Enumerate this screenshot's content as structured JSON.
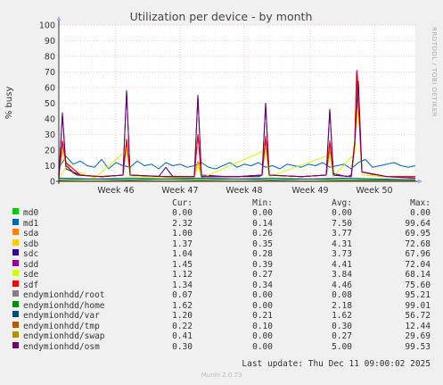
{
  "chart_data": {
    "type": "line",
    "title": "Utilization per device - by month",
    "ylabel": "% busy",
    "ylim": [
      0,
      100
    ],
    "yticks": [
      0,
      10,
      20,
      30,
      40,
      50,
      60,
      70,
      80,
      90,
      100
    ],
    "xrange": [
      0,
      100
    ],
    "xticks": [
      {
        "label": "Week 46",
        "x": 16
      },
      {
        "label": "Week 47",
        "x": 34
      },
      {
        "label": "Week 48",
        "x": 52
      },
      {
        "label": "Week 49",
        "x": 70.5
      },
      {
        "label": "Week 50",
        "x": 88.5
      }
    ],
    "grid": true,
    "watermark": "RRDTOOL / TOBI OETIKER",
    "series": [
      {
        "name": "md0",
        "color": "#00cc00",
        "cur": "0.00",
        "min": "0.00",
        "avg": "0.00",
        "max": "0.00",
        "x": [
          0,
          100
        ],
        "y": [
          0,
          0
        ]
      },
      {
        "name": "md1",
        "color": "#0066b3",
        "cur": "2.32",
        "min": "0.14",
        "avg": "7.50",
        "max": "99.64",
        "x": [
          0,
          1,
          2,
          4,
          6,
          8,
          10,
          12,
          14,
          16,
          18,
          20,
          22,
          24,
          26,
          28,
          30,
          32,
          34,
          36,
          38,
          40,
          42,
          44,
          46,
          48,
          50,
          52,
          54,
          56,
          58,
          60,
          62,
          64,
          66,
          68,
          70,
          72,
          74,
          76,
          78,
          80,
          82,
          84,
          86,
          88,
          90,
          92,
          94,
          96,
          98,
          100
        ],
        "y": [
          9,
          12,
          16,
          11,
          13,
          10,
          9,
          14,
          8,
          12,
          10,
          9,
          13,
          10,
          11,
          8,
          12,
          10,
          11,
          9,
          10,
          12,
          9,
          8,
          10,
          12,
          9,
          11,
          10,
          12,
          9,
          10,
          8,
          11,
          10,
          9,
          11,
          10,
          12,
          9,
          10,
          11,
          8,
          12,
          14,
          9,
          10,
          11,
          12,
          10,
          9,
          10
        ]
      },
      {
        "name": "sda",
        "color": "#ff8000",
        "cur": "1.00",
        "min": "0.26",
        "avg": "3.77",
        "max": "69.95",
        "x": [
          0,
          1,
          2,
          4,
          10,
          18,
          19,
          20,
          30,
          38,
          39,
          40,
          50,
          57,
          58,
          59,
          68,
          75,
          76,
          77,
          82,
          83,
          83.8,
          85,
          90,
          100
        ],
        "y": [
          3,
          24,
          12,
          5,
          3,
          4,
          27,
          4,
          3,
          3,
          13,
          3,
          3,
          4,
          26,
          4,
          3,
          4,
          21,
          4,
          3,
          24,
          68,
          6,
          3,
          3
        ]
      },
      {
        "name": "sdb",
        "color": "#ffcc00",
        "cur": "1.37",
        "min": "0.35",
        "avg": "4.31",
        "max": "72.68",
        "x": [
          0,
          1,
          2,
          5,
          12,
          18,
          19,
          20,
          30,
          38,
          39,
          40,
          50,
          57,
          58,
          59,
          68,
          75,
          76,
          77,
          82,
          83,
          84,
          85,
          92,
          100
        ],
        "y": [
          3,
          20,
          10,
          4,
          3,
          4,
          22,
          4,
          3,
          3,
          11,
          3,
          3,
          4,
          22,
          4,
          3,
          4,
          18,
          4,
          3,
          20,
          57,
          6,
          3,
          3
        ]
      },
      {
        "name": "sdc",
        "color": "#330099",
        "cur": "1.04",
        "min": "0.28",
        "avg": "3.73",
        "max": "67.96",
        "x": [
          0,
          1,
          2,
          6,
          12,
          18,
          19,
          20,
          28,
          30,
          32,
          38,
          39,
          40,
          48,
          50,
          56,
          57,
          58,
          59,
          68,
          75,
          76,
          77,
          81,
          82,
          83,
          84,
          85,
          92,
          100
        ],
        "y": [
          2,
          43,
          8,
          4,
          3,
          4,
          58,
          4,
          3,
          9,
          3,
          3,
          55,
          4,
          3,
          3,
          3,
          4,
          50,
          4,
          3,
          4,
          46,
          5,
          3,
          4,
          24,
          64,
          6,
          3,
          2
        ]
      },
      {
        "name": "sdd",
        "color": "#990099",
        "cur": "1.45",
        "min": "0.39",
        "avg": "4.41",
        "max": "72.04",
        "x": [
          0,
          1,
          2,
          6,
          12,
          18,
          19,
          20,
          30,
          38,
          39,
          40,
          50,
          57,
          58,
          59,
          68,
          75,
          76,
          77,
          82,
          83,
          83.6,
          85,
          92,
          100
        ],
        "y": [
          3,
          25,
          12,
          4,
          3,
          4,
          26,
          4,
          3,
          3,
          30,
          3,
          3,
          4,
          28,
          4,
          3,
          4,
          25,
          4,
          3,
          26,
          71,
          6,
          3,
          3
        ]
      },
      {
        "name": "sde",
        "color": "#ccff00",
        "cur": "1.12",
        "min": "0.27",
        "avg": "3.84",
        "max": "68.14",
        "x": [
          0,
          2,
          10,
          19,
          20,
          38,
          39,
          40,
          58,
          59,
          76,
          77,
          83,
          84,
          85,
          100
        ],
        "y": [
          2,
          9,
          2,
          20,
          3,
          2,
          10,
          2,
          20,
          3,
          17,
          3,
          18,
          55,
          4,
          2
        ]
      },
      {
        "name": "sdf",
        "color": "#ff0000",
        "cur": "1.34",
        "min": "0.34",
        "avg": "4.46",
        "max": "75.60",
        "x": [
          0,
          1,
          2,
          6,
          12,
          18,
          19,
          20,
          30,
          38,
          39,
          40,
          50,
          57,
          58,
          59,
          68,
          75,
          76,
          77,
          82,
          83,
          83.5,
          85,
          92,
          100
        ],
        "y": [
          3,
          26,
          12,
          4,
          3,
          4,
          27,
          4,
          3,
          3,
          30,
          3,
          3,
          4,
          29,
          4,
          3,
          4,
          26,
          4,
          3,
          26,
          70,
          6,
          3,
          3
        ]
      },
      {
        "name": "endymionhdd/root",
        "color": "#808080",
        "cur": "0.07",
        "min": "0.00",
        "avg": "0.08",
        "max": "95.21",
        "x": [
          0,
          100
        ],
        "y": [
          0.1,
          0.1
        ]
      },
      {
        "name": "endymionhdd/home",
        "color": "#008f00",
        "cur": "1.62",
        "min": "0.00",
        "avg": "2.18",
        "max": "99.01",
        "x": [
          0,
          20,
          40,
          60,
          80,
          100
        ],
        "y": [
          1,
          2,
          1,
          2,
          1,
          1
        ]
      },
      {
        "name": "endymionhdd/var",
        "color": "#00487d",
        "cur": "1.20",
        "min": "0.21",
        "avg": "1.62",
        "max": "56.72",
        "x": [
          0,
          20,
          40,
          60,
          80,
          100
        ],
        "y": [
          2,
          1,
          2,
          1,
          2,
          1
        ]
      },
      {
        "name": "endymionhdd/tmp",
        "color": "#b35a00",
        "cur": "0.22",
        "min": "0.10",
        "avg": "0.30",
        "max": "12.44",
        "x": [
          0,
          100
        ],
        "y": [
          0.3,
          0.3
        ]
      },
      {
        "name": "endymionhdd/swap",
        "color": "#b38f00",
        "cur": "0.41",
        "min": "0.00",
        "avg": "0.27",
        "max": "29.69",
        "x": [
          0,
          100
        ],
        "y": [
          0.3,
          0.3
        ]
      },
      {
        "name": "endymionhdd/osm",
        "color": "#6b006b",
        "cur": "0.30",
        "min": "0.00",
        "avg": "5.00",
        "max": "99.53",
        "x": [
          0,
          1,
          2,
          5,
          12,
          18,
          19,
          20,
          30,
          38,
          39,
          40,
          50,
          57,
          58,
          59,
          68,
          75,
          76,
          77,
          82,
          83,
          84,
          85,
          92,
          100
        ],
        "y": [
          2,
          44,
          10,
          4,
          3,
          4,
          58,
          4,
          3,
          3,
          55,
          3,
          3,
          4,
          50,
          4,
          3,
          4,
          46,
          4,
          3,
          24,
          64,
          6,
          3,
          2
        ]
      }
    ]
  },
  "legend": {
    "col_cur": "Cur:",
    "col_min": "Min:",
    "col_avg": "Avg:",
    "col_max": "Max:"
  },
  "last_update": "Last update: Thu Dec 11 09:00:02 2025",
  "footer": "Munin 2.0.73"
}
